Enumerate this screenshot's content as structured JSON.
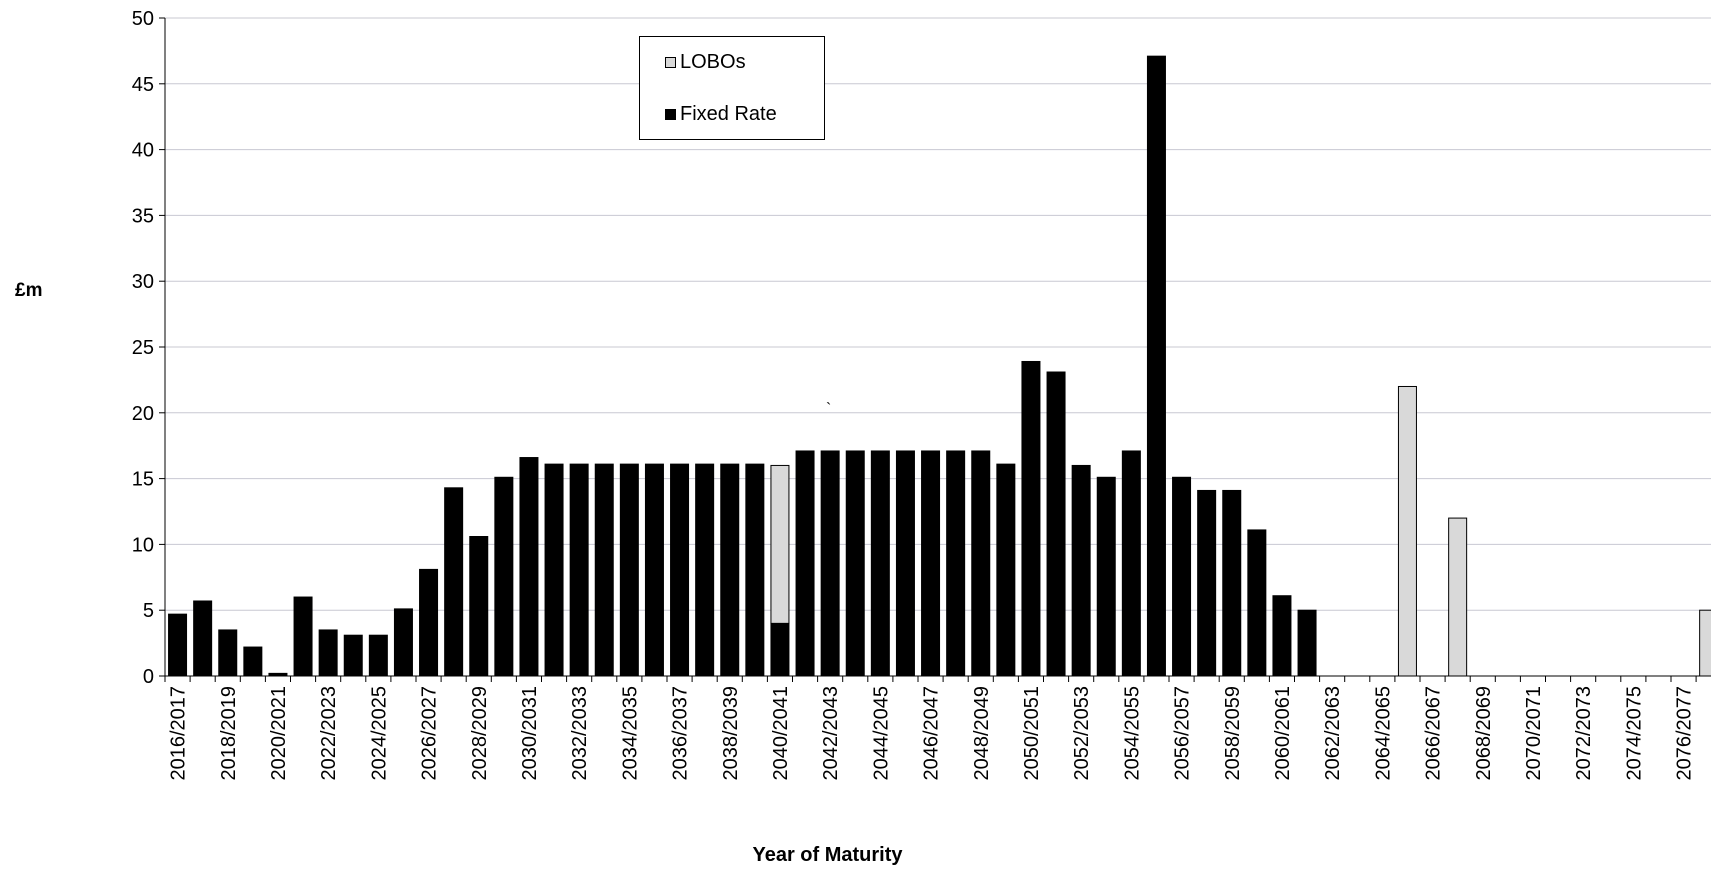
{
  "chart_data": {
    "type": "bar",
    "stacked": true,
    "xlabel": "Year of Maturity",
    "ylabel": "£m",
    "ylim": [
      0,
      50
    ],
    "yticks": [
      0,
      5,
      10,
      15,
      20,
      25,
      30,
      35,
      40,
      45,
      50
    ],
    "grid": true,
    "legend_position": "top-center",
    "stray_mark": "`",
    "categories": [
      "2016/2017",
      "2017/2018",
      "2018/2019",
      "2019/2020",
      "2020/2021",
      "2021/2022",
      "2022/2023",
      "2023/2024",
      "2024/2025",
      "2025/2026",
      "2026/2027",
      "2027/2028",
      "2028/2029",
      "2029/2030",
      "2030/2031",
      "2031/2032",
      "2032/2033",
      "2033/2034",
      "2034/2035",
      "2035/2036",
      "2036/2037",
      "2037/2038",
      "2038/2039",
      "2039/2040",
      "2040/2041",
      "2041/2042",
      "2042/2043",
      "2043/2044",
      "2044/2045",
      "2045/2046",
      "2046/2047",
      "2047/2048",
      "2048/2049",
      "2049/2050",
      "2050/2051",
      "2051/2052",
      "2052/2053",
      "2053/2054",
      "2054/2055",
      "2055/2056",
      "2056/2057",
      "2057/2058",
      "2058/2059",
      "2059/2060",
      "2060/2061",
      "2061/2062",
      "2062/2063",
      "2063/2064",
      "2064/2065",
      "2065/2066",
      "2066/2067",
      "2067/2068",
      "2068/2069",
      "2069/2070",
      "2070/2071",
      "2071/2072",
      "2072/2073",
      "2073/2074",
      "2074/2075",
      "2075/2076",
      "2076/2077",
      "2077/2078"
    ],
    "tick_labels": [
      "2016/2017",
      "2018/2019",
      "2020/2021",
      "2022/2023",
      "2024/2025",
      "2026/2027",
      "2028/2029",
      "2030/2031",
      "2032/2033",
      "2034/2035",
      "2036/2037",
      "2038/2039",
      "2040/2041",
      "2042/2043",
      "2044/2045",
      "2046/2047",
      "2048/2049",
      "2050/2051",
      "2052/2053",
      "2054/2055",
      "2056/2057",
      "2058/2059",
      "2060/2061",
      "2062/2063",
      "2064/2065",
      "2066/2067",
      "2068/2069",
      "2070/2071",
      "2072/2073",
      "2074/2075",
      "2076/2077"
    ],
    "series": [
      {
        "name": "Fixed Rate",
        "color": "#000000",
        "values": [
          4.7,
          5.7,
          3.5,
          2.2,
          0.2,
          6.0,
          3.5,
          3.1,
          3.1,
          5.1,
          8.1,
          14.3,
          10.6,
          15.1,
          16.6,
          16.1,
          16.1,
          16.1,
          16.1,
          16.1,
          16.1,
          16.1,
          16.1,
          16.1,
          4.0,
          17.1,
          17.1,
          17.1,
          17.1,
          17.1,
          17.1,
          17.1,
          17.1,
          16.1,
          23.9,
          23.1,
          16.0,
          15.1,
          17.1,
          47.1,
          15.1,
          14.1,
          14.1,
          11.1,
          6.1,
          5.0,
          0,
          0,
          0,
          0,
          0,
          0,
          0,
          0,
          0,
          0,
          0,
          0,
          0,
          0,
          0,
          0
        ]
      },
      {
        "name": "LOBOs",
        "color": "#d9d9d9",
        "values": [
          0,
          0,
          0,
          0,
          0,
          0,
          0,
          0,
          0,
          0,
          0,
          0,
          0,
          0,
          0,
          0,
          0,
          0,
          0,
          0,
          0,
          0,
          0,
          0,
          12.0,
          0,
          0,
          0,
          0,
          0,
          0,
          0,
          0,
          0,
          0,
          0,
          0,
          0,
          0,
          0,
          0,
          0,
          0,
          0,
          0,
          0,
          0,
          0,
          0,
          22.0,
          0,
          12.0,
          0,
          0,
          0,
          0,
          0,
          0,
          0,
          0,
          0,
          5.0
        ]
      }
    ]
  }
}
